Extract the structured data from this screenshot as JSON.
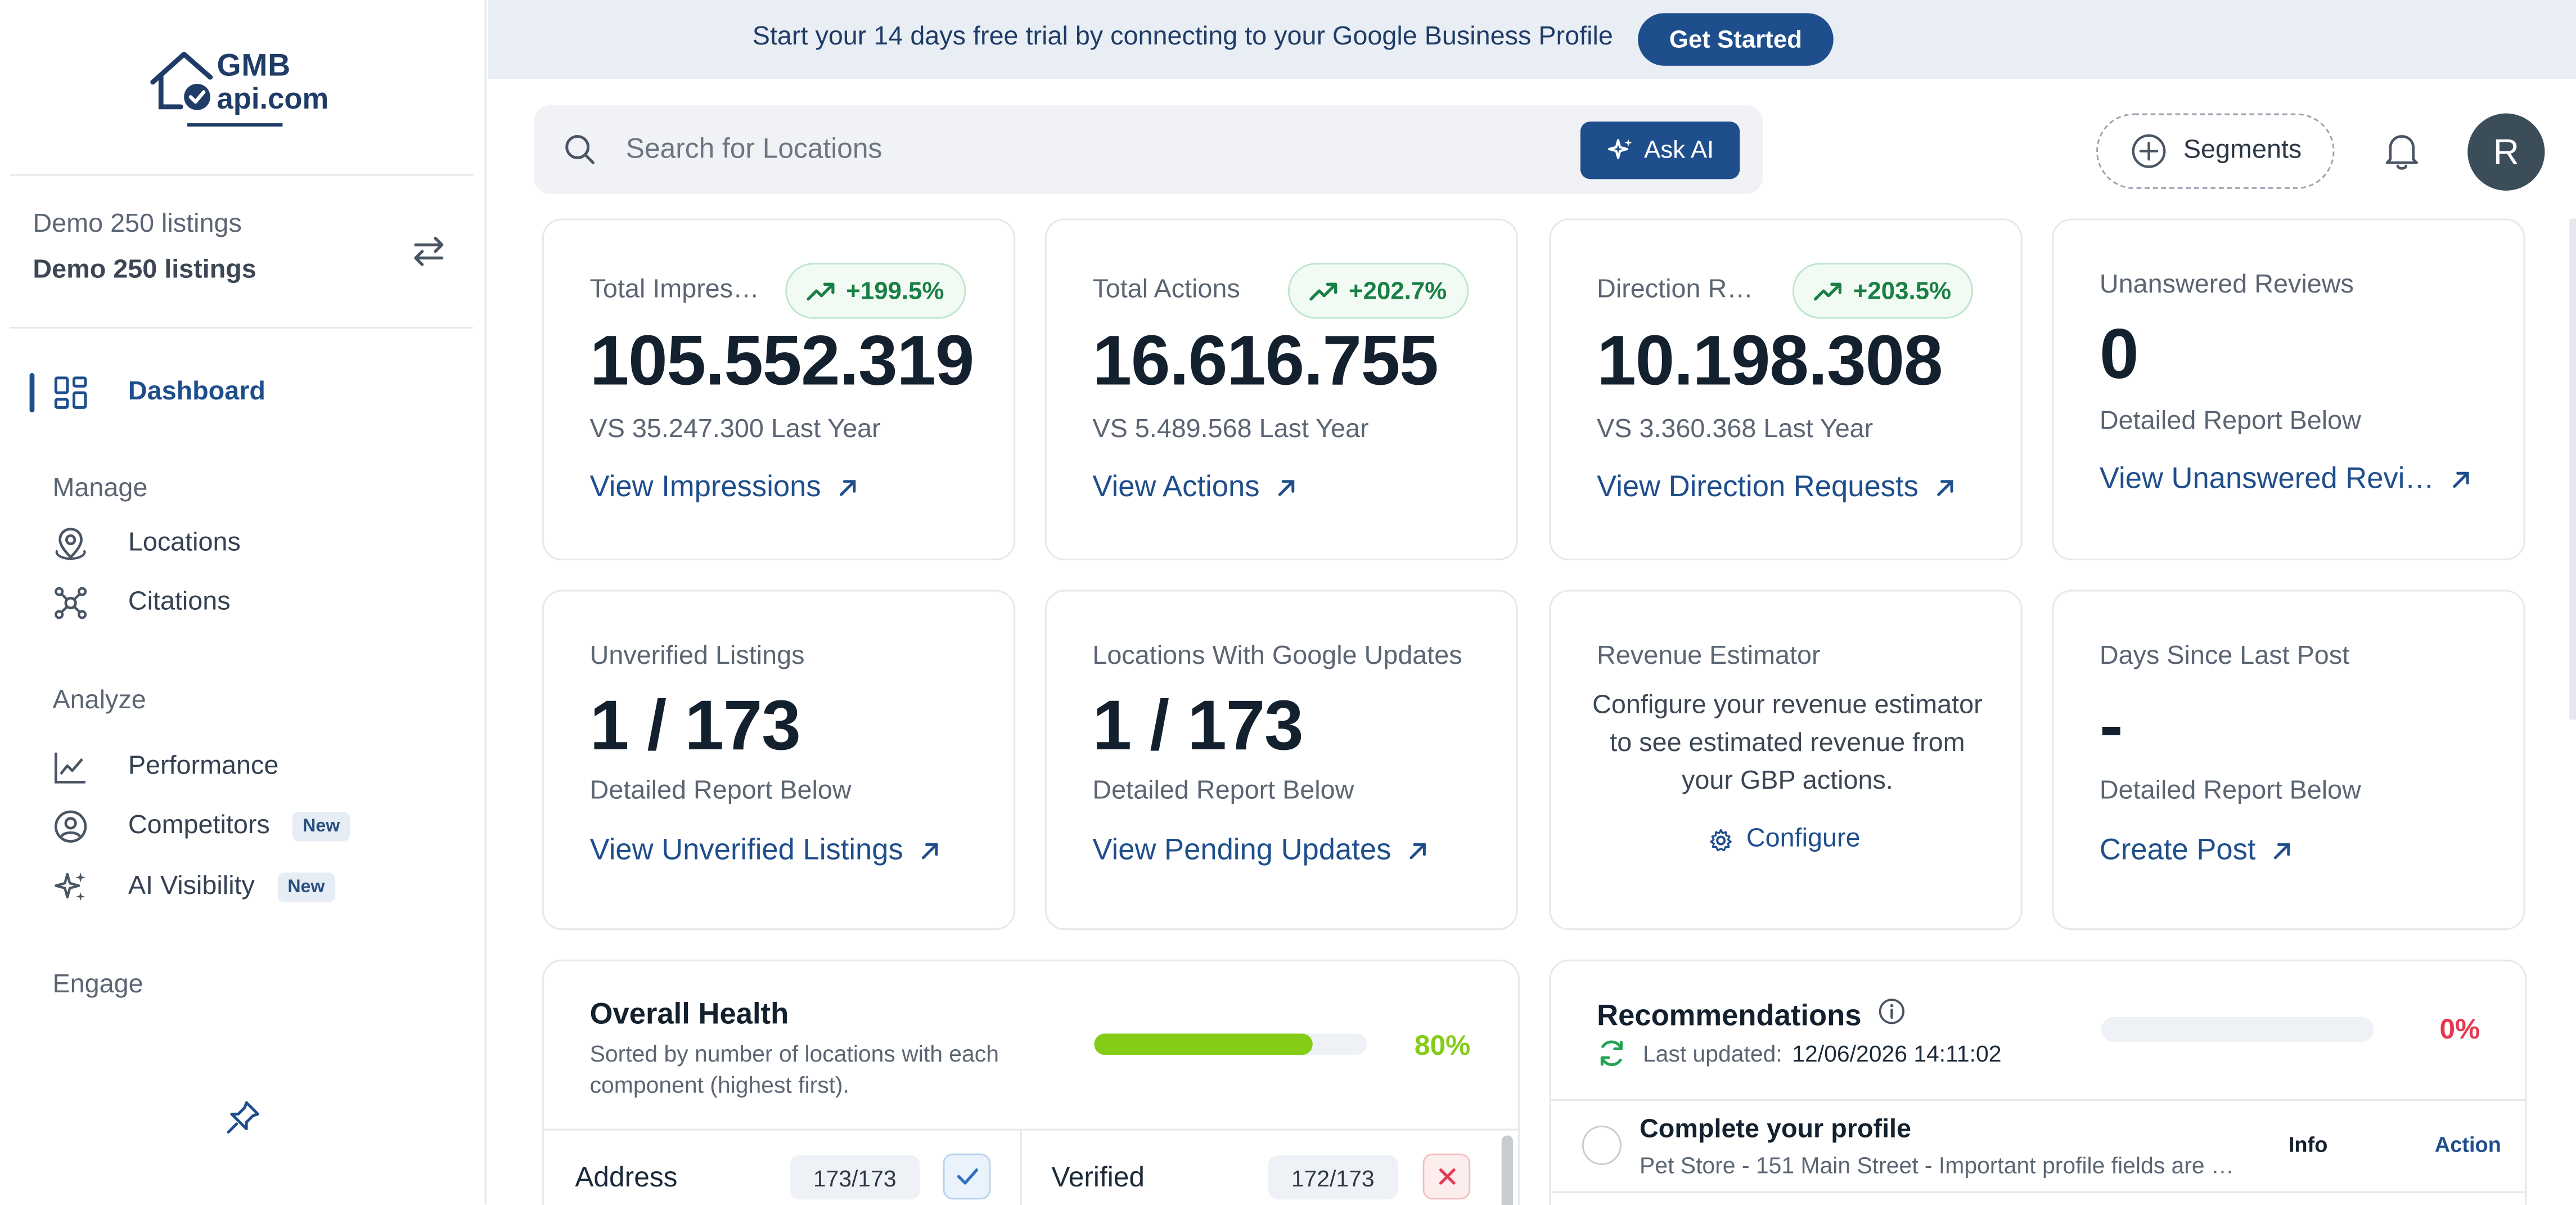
{
  "brand": {
    "logo_line1": "GMB",
    "logo_line2": "api.com"
  },
  "banner": {
    "text": "Start your 14 days free trial by connecting to your Google Business Profile",
    "button": "Get Started"
  },
  "account": {
    "group": "Demo 250 listings",
    "name": "Demo 250 listings"
  },
  "nav": {
    "dashboard": "Dashboard",
    "manage_heading": "Manage",
    "locations": "Locations",
    "citations": "Citations",
    "analyze_heading": "Analyze",
    "performance": "Performance",
    "competitors": "Competitors",
    "competitors_badge": "New",
    "ai_visibility": "AI Visibility",
    "ai_visibility_badge": "New",
    "engage_heading": "Engage"
  },
  "search": {
    "placeholder": "Search for Locations",
    "ask_ai": "Ask AI"
  },
  "header": {
    "segments": "Segments",
    "avatar_initial": "R"
  },
  "cards": {
    "impressions": {
      "label": "Total Impressions",
      "change": "+199.5%",
      "value": "105.552.319",
      "compare": "VS 35.247.300 Last Year",
      "link": "View Impressions"
    },
    "actions": {
      "label": "Total Actions",
      "change": "+202.7%",
      "value": "16.616.755",
      "compare": "VS 5.489.568 Last Year",
      "link": "View Actions"
    },
    "directions": {
      "label": "Direction Requests",
      "change": "+203.5%",
      "value": "10.198.308",
      "compare": "VS 3.360.368 Last Year",
      "link": "View Direction Requests"
    },
    "unanswered": {
      "label": "Unanswered Reviews",
      "value": "0",
      "sub": "Detailed Report Below",
      "link": "View Unanswered Reviews"
    },
    "unverified": {
      "label": "Unverified Listings",
      "value": "1 / 173",
      "sub": "Detailed Report Below",
      "link": "View Unverified Listings"
    },
    "google_updates": {
      "label": "Locations With Google Updates",
      "value": "1 / 173",
      "sub": "Detailed Report Below",
      "link": "View Pending Updates"
    },
    "revenue": {
      "label": "Revenue Estimator",
      "text": "Configure your revenue estimator to see estimated revenue from your GBP actions.",
      "button": "Configure"
    },
    "last_post": {
      "label": "Days Since Last Post",
      "value": "-",
      "sub": "Detailed Report Below",
      "link": "Create Post"
    }
  },
  "health": {
    "title": "Overall Health",
    "subtitle": "Sorted by number of locations with each component (highest first).",
    "percent_text": "80%",
    "percent": 0.8,
    "rows": [
      {
        "label": "Address",
        "count": "173/173",
        "status": "ok"
      },
      {
        "label": "Verified",
        "count": "172/173",
        "status": "bad"
      }
    ]
  },
  "recommendations": {
    "title": "Recommendations",
    "updated_label": "Last updated:",
    "updated_value": "12/06/2026 14:11:02",
    "percent_text": "0%",
    "percent": 0,
    "item_title": "Complete your profile",
    "item_subtitle": "Pet Store - 151 Main Street - Important profile fields are …",
    "col_info": "Info",
    "col_action": "Action"
  },
  "colors": {
    "accent": "#1f4e8c",
    "positive": "#1a7f45",
    "health": "#84cc16",
    "danger": "#e53950"
  }
}
